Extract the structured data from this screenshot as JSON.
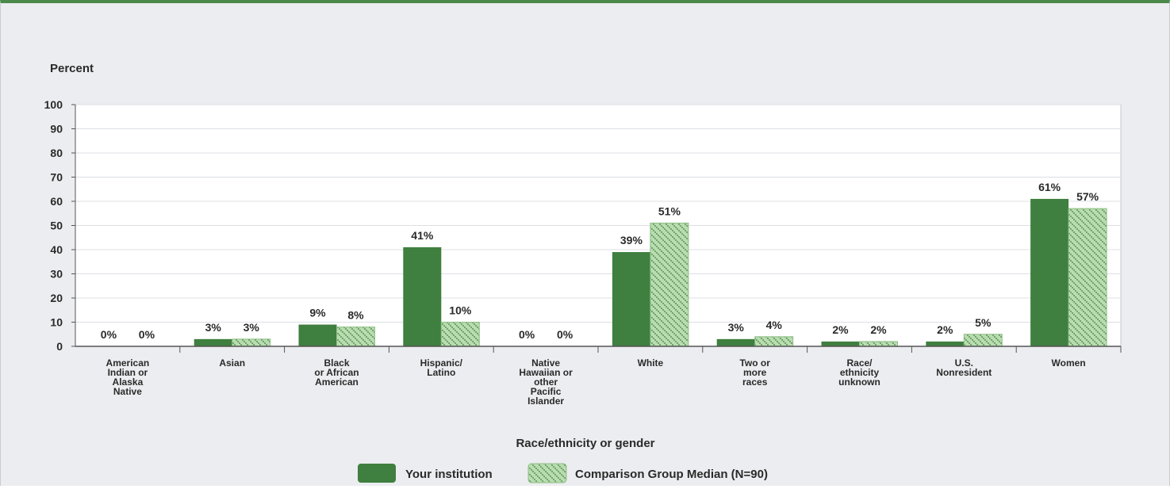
{
  "chart_data": {
    "type": "bar",
    "ylabel": "Percent",
    "xlabel": "Race/ethnicity or gender",
    "ylim": [
      0,
      100
    ],
    "yticks": [
      0,
      10,
      20,
      30,
      40,
      50,
      60,
      70,
      80,
      90,
      100
    ],
    "categories": [
      "American Indian or Alaska Native",
      "Asian",
      "Black or African American",
      "Hispanic/ Latino",
      "Native Hawaiian or other Pacific Islander",
      "White",
      "Two or more races",
      "Race/ ethnicity unknown",
      "U.S. Nonresident",
      "Women"
    ],
    "category_lines": [
      [
        "American",
        "Indian or",
        "Alaska",
        "Native"
      ],
      [
        "Asian"
      ],
      [
        "Black",
        "or African",
        "American"
      ],
      [
        "Hispanic/",
        "Latino"
      ],
      [
        "Native",
        "Hawaiian or",
        "other",
        "Pacific",
        "Islander"
      ],
      [
        "White"
      ],
      [
        "Two or",
        "more",
        "races"
      ],
      [
        "Race/",
        "ethnicity",
        "unknown"
      ],
      [
        "U.S.",
        "Nonresident"
      ],
      [
        "Women"
      ]
    ],
    "series": [
      {
        "name": "Your institution",
        "values": [
          0,
          3,
          9,
          41,
          0,
          39,
          3,
          2,
          2,
          61
        ],
        "labels": [
          "0%",
          "3%",
          "9%",
          "41%",
          "0%",
          "39%",
          "3%",
          "2%",
          "2%",
          "61%"
        ],
        "color": "#3f7f3f",
        "pattern": "solid"
      },
      {
        "name": "Comparison Group Median (N=90)",
        "values": [
          0,
          3,
          8,
          10,
          0,
          51,
          4,
          2,
          5,
          57
        ],
        "labels": [
          "0%",
          "3%",
          "8%",
          "10%",
          "0%",
          "51%",
          "4%",
          "2%",
          "5%",
          "57%"
        ],
        "color": "#b9dcb0",
        "pattern": "hatched"
      }
    ],
    "grid": true,
    "legend_position": "bottom"
  }
}
